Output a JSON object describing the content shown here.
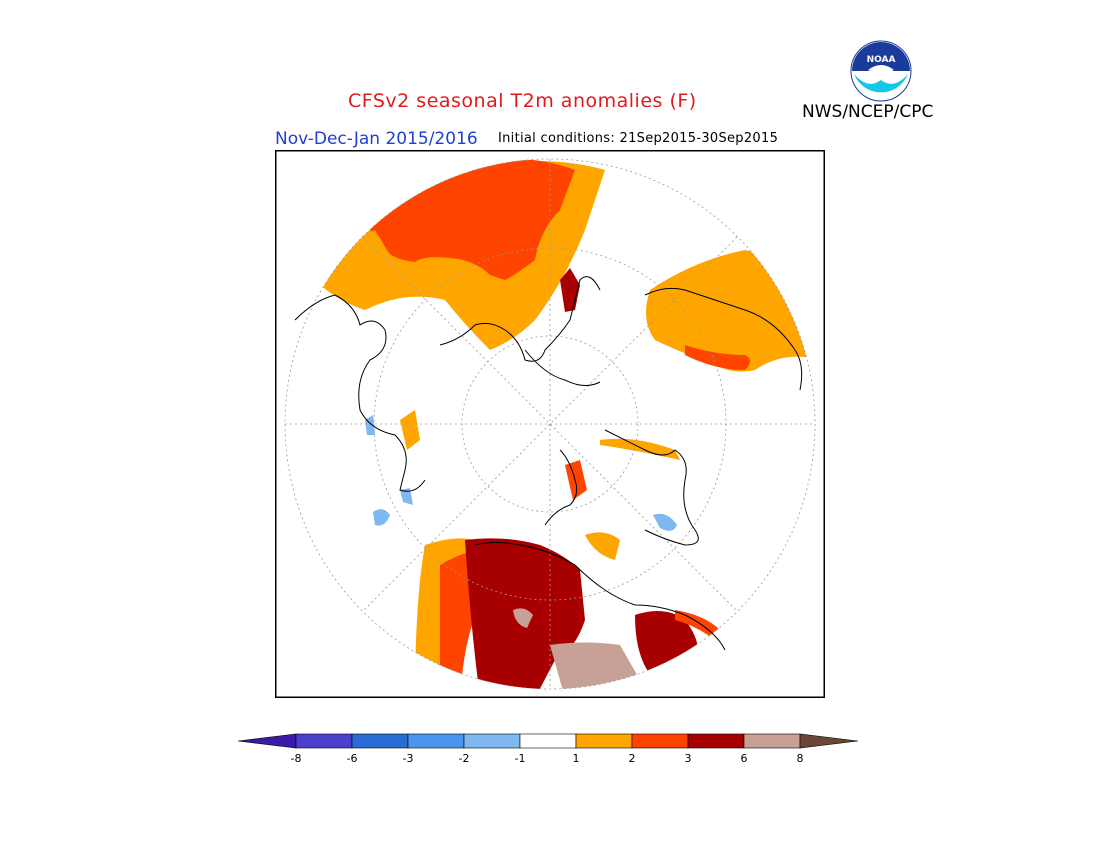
{
  "header": {
    "title": "CFSv2 seasonal T2m anomalies (F)",
    "agency": "NWS/NCEP/CPC",
    "season": "Nov-Dec-Jan 2015/2016",
    "initial_conditions": "Initial conditions: 21Sep2015-30Sep2015"
  },
  "logo": {
    "text": "NOAA",
    "icon": "noaa-logo-icon"
  },
  "colorbar": {
    "labels": [
      "-8",
      "-6",
      "-3",
      "-2",
      "-1",
      "1",
      "2",
      "3",
      "6",
      "8"
    ],
    "colors": [
      "#3a1aa8",
      "#4a3fcf",
      "#2a6bd6",
      "#4a96ee",
      "#7fb8f0",
      "#ffffff",
      "#ffa500",
      "#ff4400",
      "#a80000",
      "#c8a196",
      "#6b4636"
    ]
  },
  "colors": {
    "title": "#e31a1c",
    "season": "#1f3fd6",
    "anom_1_2": "#ffa500",
    "anom_2_3": "#ff4400",
    "anom_3_6": "#a80000",
    "anom_6_8": "#c8a196",
    "anom_neg_1_2": "#7fb8f0"
  }
}
